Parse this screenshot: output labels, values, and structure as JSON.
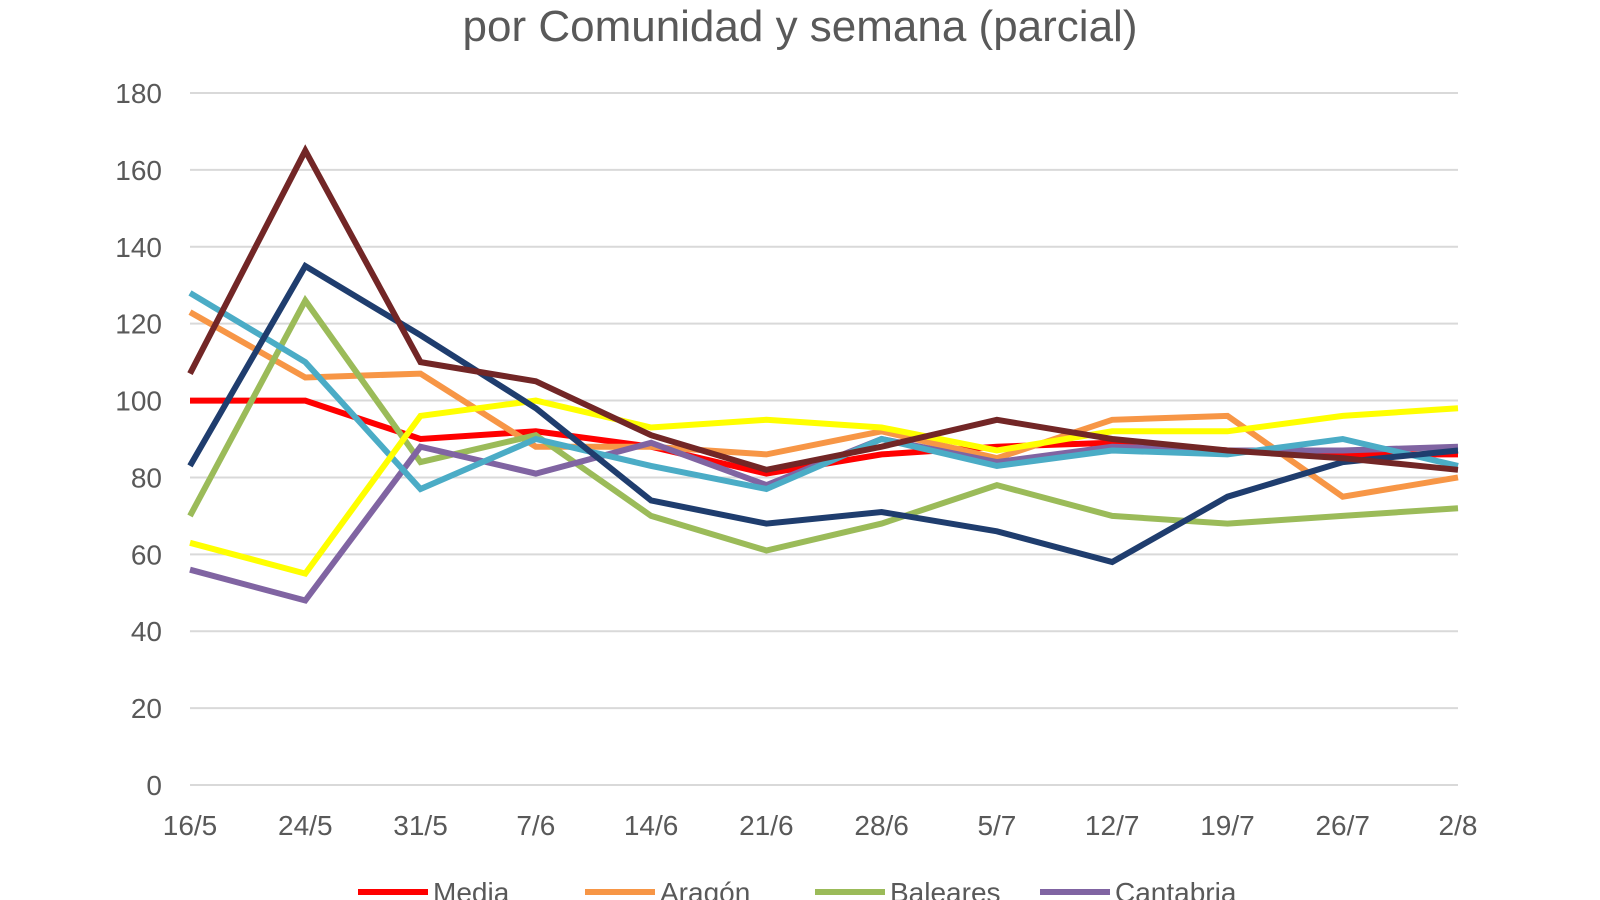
{
  "chart_data": {
    "type": "line",
    "title": "por Comunidad y semana (parcial)",
    "xlabel": "",
    "ylabel": "",
    "ylim": [
      0,
      180
    ],
    "yticks": [
      0,
      20,
      40,
      60,
      80,
      100,
      120,
      140,
      160,
      180
    ],
    "grid": true,
    "legend_position": "bottom",
    "categories": [
      "16/5",
      "24/5",
      "31/5",
      "7/6",
      "14/6",
      "21/6",
      "28/6",
      "5/7",
      "12/7",
      "19/7",
      "26/7",
      "2/8"
    ],
    "series": [
      {
        "name": "Media",
        "color": "#ff0000",
        "in_legend": true,
        "values": [
          100,
          100,
          90,
          92,
          88,
          81,
          86,
          88,
          89,
          87,
          86,
          86
        ]
      },
      {
        "name": "Aragón",
        "color": "#f79646",
        "in_legend": true,
        "values": [
          123,
          106,
          107,
          88,
          88,
          86,
          92,
          85,
          95,
          96,
          75,
          80
        ]
      },
      {
        "name": "Baleares",
        "color": "#9bbb59",
        "in_legend": true,
        "values": [
          70,
          126,
          84,
          91,
          70,
          61,
          68,
          78,
          70,
          68,
          70,
          72
        ]
      },
      {
        "name": "Cantabria",
        "color": "#8064a2",
        "in_legend": true,
        "values": [
          56,
          48,
          88,
          81,
          89,
          78,
          90,
          84,
          88,
          87,
          87,
          88
        ]
      },
      {
        "name": "",
        "color": "#4bacc6",
        "in_legend": false,
        "values": [
          128,
          110,
          77,
          90,
          83,
          77,
          90,
          83,
          87,
          86,
          90,
          83
        ]
      },
      {
        "name": "",
        "color": "#ffff00",
        "in_legend": false,
        "values": [
          63,
          55,
          96,
          100,
          93,
          95,
          93,
          87,
          92,
          92,
          96,
          98
        ]
      },
      {
        "name": "",
        "color": "#1f3d6e",
        "in_legend": false,
        "values": [
          83,
          135,
          117,
          98,
          74,
          68,
          71,
          66,
          58,
          75,
          84,
          87
        ]
      },
      {
        "name": "",
        "color": "#722626",
        "in_legend": false,
        "values": [
          107,
          165,
          110,
          105,
          91,
          82,
          88,
          95,
          90,
          87,
          85,
          82
        ]
      }
    ]
  }
}
